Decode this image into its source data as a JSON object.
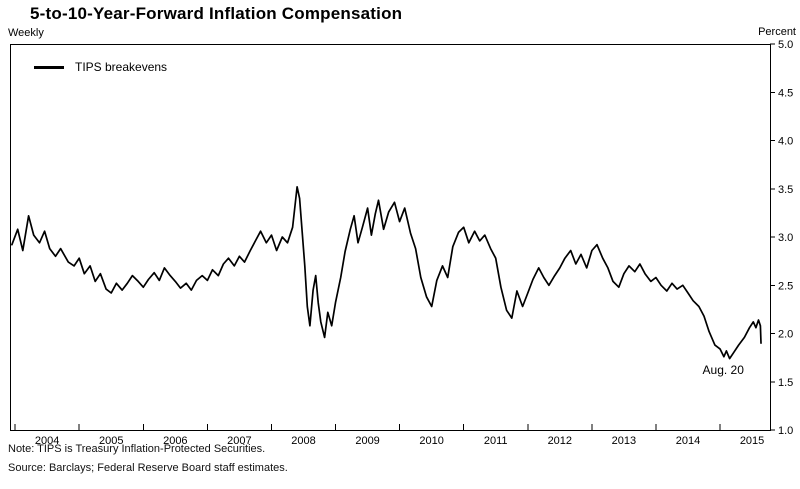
{
  "header": {
    "title": "5-to-10-Year-Forward Inflation Compensation"
  },
  "notes": {
    "note": "Note:  TIPS is Treasury Inflation-Protected Securities.",
    "source": "Source:  Barclays; Federal Reserve Board staff estimates."
  },
  "chart_data": {
    "type": "line",
    "title": "5-to-10-Year-Forward Inflation Compensation",
    "frequency_label": "Weekly",
    "unit_label": "Percent",
    "legend_label": "TIPS breakevens",
    "line_color": "#000000",
    "grid": false,
    "x_domain": [
      2003.92,
      2015.78
    ],
    "y_domain": [
      1.0,
      5.0
    ],
    "x_ticks": [
      2004,
      2005,
      2006,
      2007,
      2008,
      2009,
      2010,
      2011,
      2012,
      2013,
      2014,
      2015
    ],
    "x_tick_label_offset": 0.5,
    "y_ticks": [
      1.0,
      1.5,
      2.0,
      2.5,
      3.0,
      3.5,
      4.0,
      4.5,
      5.0
    ],
    "annotation": {
      "text": "Aug. 20",
      "x": 2015.05,
      "y": 1.58
    },
    "series": [
      {
        "name": "TIPS breakevens",
        "x": [
          2003.95,
          2004.04,
          2004.12,
          2004.21,
          2004.29,
          2004.38,
          2004.46,
          2004.54,
          2004.63,
          2004.71,
          2004.83,
          2004.92,
          2005.0,
          2005.08,
          2005.17,
          2005.25,
          2005.33,
          2005.42,
          2005.5,
          2005.58,
          2005.67,
          2005.75,
          2005.83,
          2005.92,
          2006.0,
          2006.08,
          2006.17,
          2006.25,
          2006.33,
          2006.42,
          2006.5,
          2006.58,
          2006.67,
          2006.75,
          2006.83,
          2006.92,
          2007.0,
          2007.08,
          2007.17,
          2007.25,
          2007.33,
          2007.42,
          2007.5,
          2007.58,
          2007.67,
          2007.75,
          2007.83,
          2007.92,
          2008.0,
          2008.08,
          2008.17,
          2008.25,
          2008.33,
          2008.4,
          2008.44,
          2008.48,
          2008.52,
          2008.56,
          2008.6,
          2008.65,
          2008.69,
          2008.73,
          2008.77,
          2008.83,
          2008.88,
          2008.94,
          2009.0,
          2009.08,
          2009.15,
          2009.23,
          2009.29,
          2009.35,
          2009.42,
          2009.5,
          2009.56,
          2009.62,
          2009.67,
          2009.75,
          2009.83,
          2009.92,
          2010.0,
          2010.08,
          2010.17,
          2010.25,
          2010.33,
          2010.42,
          2010.5,
          2010.58,
          2010.67,
          2010.75,
          2010.83,
          2010.92,
          2011.0,
          2011.08,
          2011.17,
          2011.25,
          2011.33,
          2011.42,
          2011.5,
          2011.58,
          2011.67,
          2011.75,
          2011.83,
          2011.92,
          2012.0,
          2012.08,
          2012.17,
          2012.25,
          2012.33,
          2012.42,
          2012.5,
          2012.58,
          2012.67,
          2012.75,
          2012.83,
          2012.92,
          2013.0,
          2013.08,
          2013.17,
          2013.25,
          2013.33,
          2013.42,
          2013.5,
          2013.58,
          2013.67,
          2013.75,
          2013.83,
          2013.92,
          2014.0,
          2014.08,
          2014.17,
          2014.25,
          2014.33,
          2014.42,
          2014.5,
          2014.58,
          2014.67,
          2014.75,
          2014.83,
          2014.92,
          2015.0,
          2015.06,
          2015.1,
          2015.15,
          2015.21,
          2015.29,
          2015.38,
          2015.46,
          2015.52,
          2015.56,
          2015.6,
          2015.63,
          2015.64
        ],
        "y": [
          2.92,
          3.08,
          2.86,
          3.22,
          3.02,
          2.94,
          3.06,
          2.88,
          2.8,
          2.88,
          2.74,
          2.7,
          2.78,
          2.62,
          2.7,
          2.54,
          2.62,
          2.46,
          2.42,
          2.52,
          2.45,
          2.52,
          2.6,
          2.54,
          2.48,
          2.56,
          2.63,
          2.55,
          2.68,
          2.6,
          2.54,
          2.47,
          2.52,
          2.45,
          2.55,
          2.6,
          2.55,
          2.66,
          2.6,
          2.72,
          2.78,
          2.7,
          2.8,
          2.74,
          2.86,
          2.96,
          3.06,
          2.94,
          3.02,
          2.86,
          3.0,
          2.94,
          3.1,
          3.52,
          3.4,
          3.05,
          2.7,
          2.28,
          2.08,
          2.45,
          2.6,
          2.32,
          2.12,
          1.96,
          2.22,
          2.08,
          2.32,
          2.58,
          2.85,
          3.08,
          3.22,
          2.94,
          3.1,
          3.3,
          3.02,
          3.24,
          3.38,
          3.08,
          3.26,
          3.36,
          3.16,
          3.3,
          3.04,
          2.88,
          2.58,
          2.38,
          2.28,
          2.55,
          2.7,
          2.58,
          2.9,
          3.05,
          3.1,
          2.94,
          3.06,
          2.96,
          3.02,
          2.88,
          2.78,
          2.48,
          2.24,
          2.16,
          2.44,
          2.28,
          2.42,
          2.56,
          2.68,
          2.58,
          2.5,
          2.6,
          2.68,
          2.78,
          2.86,
          2.72,
          2.82,
          2.68,
          2.86,
          2.92,
          2.78,
          2.68,
          2.54,
          2.48,
          2.62,
          2.7,
          2.64,
          2.72,
          2.62,
          2.54,
          2.58,
          2.5,
          2.44,
          2.52,
          2.46,
          2.5,
          2.42,
          2.34,
          2.28,
          2.18,
          2.02,
          1.88,
          1.84,
          1.76,
          1.82,
          1.74,
          1.8,
          1.88,
          1.96,
          2.06,
          2.12,
          2.06,
          2.14,
          2.08,
          1.9
        ]
      }
    ]
  }
}
